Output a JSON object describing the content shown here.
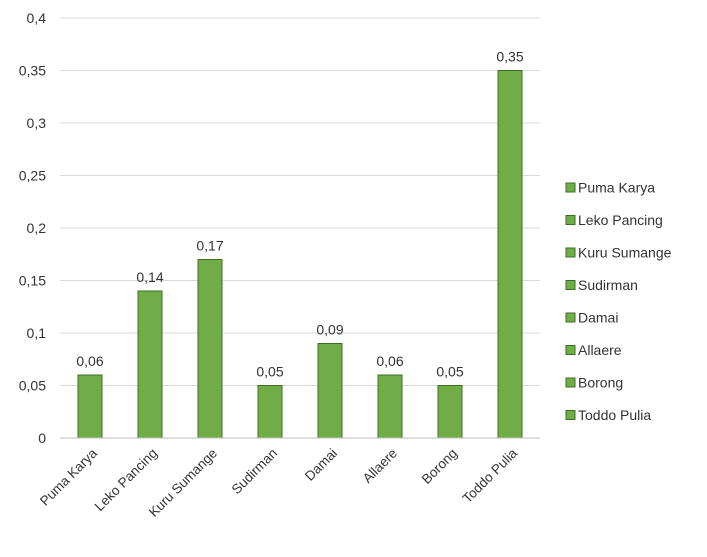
{
  "chart_data": {
    "type": "bar",
    "title": "",
    "xlabel": "",
    "ylabel": "",
    "categories": [
      "Puma Karya",
      "Leko Pancing",
      "Kuru Sumange",
      "Sudirman",
      "Damai",
      "Allaere",
      "Borong",
      "Toddo Pulia"
    ],
    "values": [
      0.06,
      0.14,
      0.17,
      0.05,
      0.09,
      0.06,
      0.05,
      0.35
    ],
    "value_labels": [
      "0,06",
      "0,14",
      "0,17",
      "0,05",
      "0,09",
      "0,06",
      "0,05",
      "0,35"
    ],
    "ylim": [
      0,
      0.4
    ],
    "yticks": [
      0,
      0.05,
      0.1,
      0.15,
      0.2,
      0.25,
      0.3,
      0.35,
      0.4
    ],
    "ytick_labels": [
      "0",
      "0,05",
      "0,1",
      "0,15",
      "0,2",
      "0,25",
      "0,3",
      "0,35",
      "0,4"
    ],
    "legend": {
      "placement": "right",
      "entries": [
        "Puma Karya",
        "Leko Pancing",
        "Kuru Sumange",
        "Sudirman",
        "Damai",
        "Allaere",
        "Borong",
        "Toddo Pulia"
      ]
    },
    "grid": true,
    "bar_color": "#70AD47",
    "bar_edge_color": "#3E6E26",
    "grid_color": "#D9D9D9"
  }
}
